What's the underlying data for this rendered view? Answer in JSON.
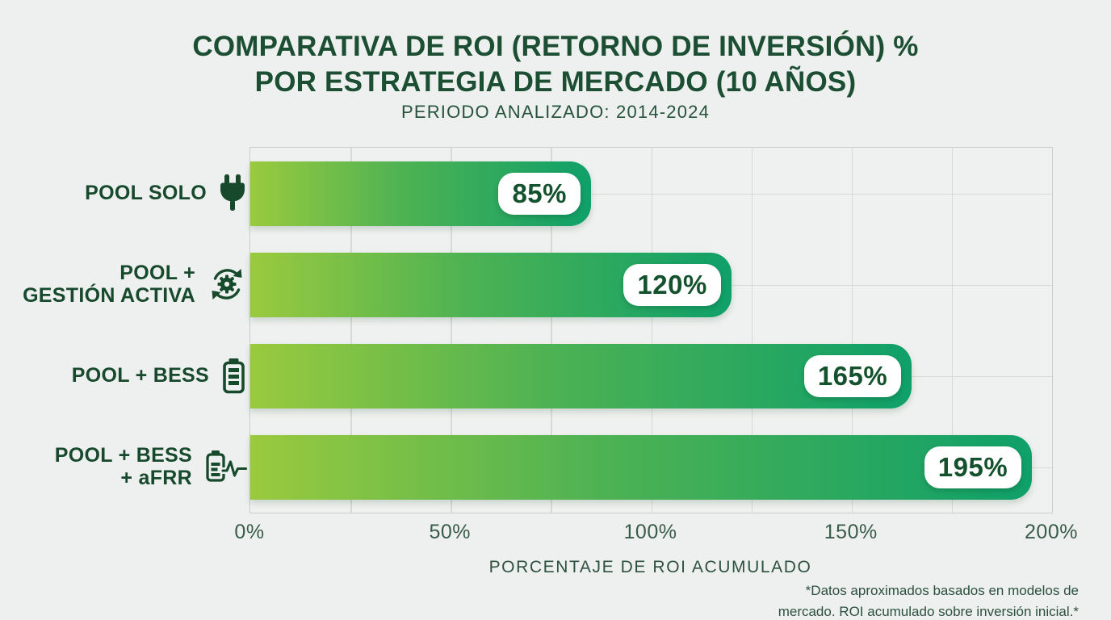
{
  "header": {
    "title_line1": "COMPARATIVA DE ROI (RETORNO DE INVERSIÓN) %",
    "title_line2": "POR ESTRATEGIA DE MERCADO (10 AÑOS)",
    "subtitle": "PERIODO ANALIZADO: 2014-2024"
  },
  "chart_data": {
    "type": "bar",
    "orientation": "horizontal",
    "title": "COMPARATIVA DE ROI (RETORNO DE INVERSIÓN) % POR ESTRATEGIA DE MERCADO (10 AÑOS)",
    "subtitle": "PERIODO ANALIZADO: 2014-2024",
    "categories": [
      "POOL SOLO",
      "POOL + GESTIÓN ACTIVA",
      "POOL + BESS",
      "POOL + BESS + aFRR"
    ],
    "values": [
      85,
      120,
      165,
      195
    ],
    "bars": [
      {
        "label_lines": [
          "POOL SOLO"
        ],
        "icon": "plug-icon",
        "value": 85,
        "value_label": "85%"
      },
      {
        "label_lines": [
          "POOL +",
          "GESTIÓN ACTIVA"
        ],
        "icon": "gear-sync-icon",
        "value": 120,
        "value_label": "120%"
      },
      {
        "label_lines": [
          "POOL + BESS"
        ],
        "icon": "battery-icon",
        "value": 165,
        "value_label": "165%"
      },
      {
        "label_lines": [
          "POOL + BESS",
          "+ aFRR"
        ],
        "icon": "battery-pulse-icon",
        "value": 195,
        "value_label": "195%"
      }
    ],
    "xlabel": "PORCENTAJE DE ROI ACUMULADO",
    "xlim": [
      0,
      200
    ],
    "x_ticks": [
      {
        "value": 0,
        "label": "0%"
      },
      {
        "value": 50,
        "label": "50%"
      },
      {
        "value": 100,
        "label": "100%"
      },
      {
        "value": 150,
        "label": "150%"
      },
      {
        "value": 200,
        "label": "200%"
      }
    ],
    "grid": true,
    "grid_step": 25,
    "legend": "none",
    "colors": {
      "background": "#edf0ee",
      "title_text": "#1b4e32",
      "label_text": "#17492c",
      "tick_text": "#3a5b4b",
      "gridline": "#d6dad7",
      "bar_gradient_start": "#9aca3e",
      "bar_gradient_end": "#0fa069",
      "badge_background": "#ffffff",
      "badge_text": "#14522e"
    }
  },
  "footnote": {
    "line1": "*Datos aproximados basados en modelos de",
    "line2": "mercado. ROI acumulado sobre inversión inicial.*"
  }
}
